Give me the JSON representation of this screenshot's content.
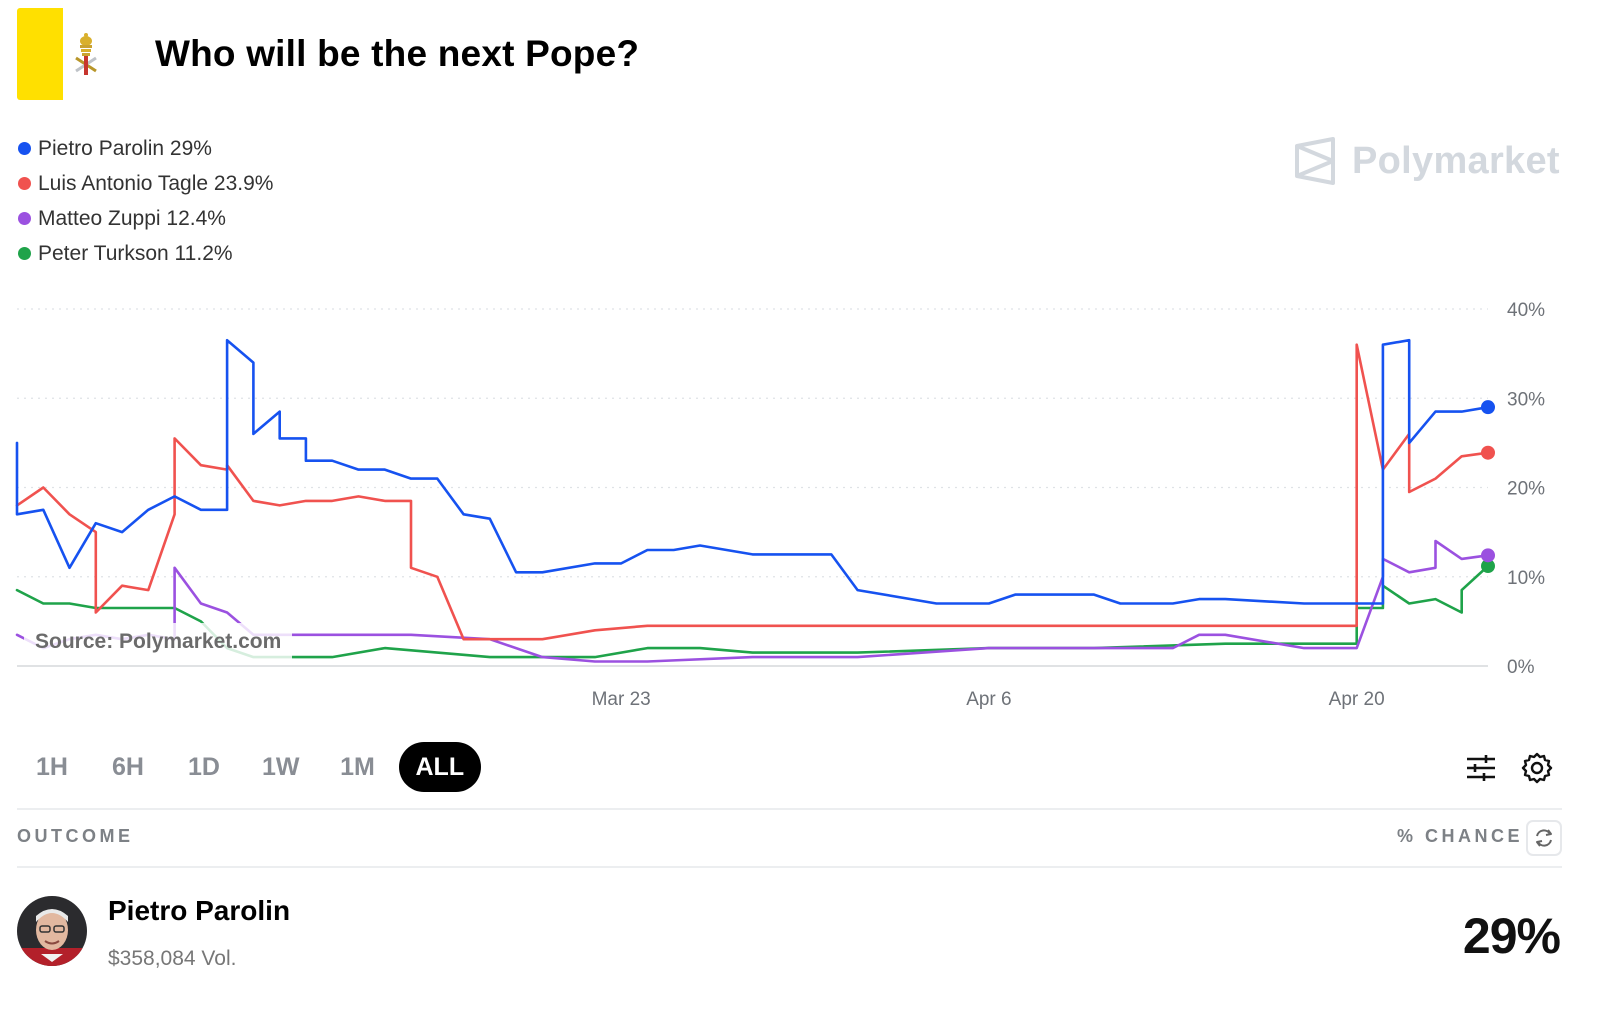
{
  "header": {
    "title": "Who will be the next Pope?",
    "flag_colors": {
      "yellow": "#FFE000",
      "white": "#FFFFFF"
    },
    "icon": "vatican-flag-icon"
  },
  "brand": {
    "name": "Polymarket",
    "icon": "polymarket-logo-icon"
  },
  "legend": [
    {
      "label": "Pietro Parolin 29%",
      "color": "#1652F0"
    },
    {
      "label": "Luis Antonio Tagle 23.9%",
      "color": "#F0524F"
    },
    {
      "label": "Matteo Zuppi 12.4%",
      "color": "#9B51E0"
    },
    {
      "label": "Peter Turkson 11.2%",
      "color": "#1FA34A"
    }
  ],
  "source": "Source: Polymarket.com",
  "chart_data": {
    "type": "line",
    "x_range": [
      "Feb 28",
      "Apr 25"
    ],
    "x_tick_labels": [
      "Mar 23",
      "Apr 6",
      "Apr 20"
    ],
    "y_tick_labels": [
      "40%",
      "30%",
      "20%",
      "10%",
      "0%"
    ],
    "ylim": [
      0,
      40
    ],
    "grid": true,
    "legend_position": "top-left",
    "series": [
      {
        "name": "Pietro Parolin",
        "color": "#1652F0",
        "x": [
          "Feb 28",
          "Feb 28",
          "Mar 1",
          "Mar 2",
          "Mar 3",
          "Mar 4",
          "Mar 5",
          "Mar 6",
          "Mar 7",
          "Mar 8",
          "Mar 8",
          "Mar 9",
          "Mar 9",
          "Mar 10",
          "Mar 10",
          "Mar 11",
          "Mar 11",
          "Mar 12",
          "Mar 13",
          "Mar 14",
          "Mar 15",
          "Mar 16",
          "Mar 17",
          "Mar 18",
          "Mar 19",
          "Mar 20",
          "Mar 22",
          "Mar 23",
          "Mar 24",
          "Mar 25",
          "Mar 26",
          "Mar 28",
          "Mar 31",
          "Apr 1",
          "Apr 4",
          "Apr 6",
          "Apr 7",
          "Apr 7",
          "Apr 10",
          "Apr 11",
          "Apr 13",
          "Apr 14",
          "Apr 15",
          "Apr 18",
          "Apr 20",
          "Apr 20",
          "Apr 21",
          "Apr 21",
          "Apr 22",
          "Apr 22",
          "Apr 23",
          "Apr 24",
          "Apr 25"
        ],
        "values": [
          25,
          17,
          17.5,
          11,
          16,
          15,
          17.5,
          19,
          17.5,
          17.5,
          36.5,
          34,
          26,
          28.5,
          25.5,
          25.5,
          23,
          23,
          22,
          22,
          21,
          21,
          17,
          16.5,
          10.5,
          10.5,
          11.5,
          11.5,
          13,
          13,
          13.5,
          12.5,
          12.5,
          8.5,
          7,
          7,
          8,
          8,
          8,
          7,
          7,
          7.5,
          7.5,
          7,
          7,
          7,
          7,
          36,
          36.5,
          25,
          28.5,
          28.5,
          29
        ]
      },
      {
        "name": "Luis Antonio Tagle",
        "color": "#F0524F",
        "x": [
          "Feb 28",
          "Mar 1",
          "Mar 1",
          "Mar 2",
          "Mar 3",
          "Mar 3",
          "Mar 4",
          "Mar 5",
          "Mar 6",
          "Mar 6",
          "Mar 7",
          "Mar 8",
          "Mar 8",
          "Mar 9",
          "Mar 10",
          "Mar 11",
          "Mar 12",
          "Mar 12",
          "Mar 13",
          "Mar 14",
          "Mar 15",
          "Mar 15",
          "Mar 16",
          "Mar 17",
          "Mar 18",
          "Mar 19",
          "Mar 20",
          "Mar 22",
          "Mar 24",
          "Mar 28",
          "Apr 1",
          "Apr 6",
          "Apr 10",
          "Apr 15",
          "Apr 20",
          "Apr 20",
          "Apr 21",
          "Apr 21",
          "Apr 22",
          "Apr 22",
          "Apr 23",
          "Apr 24",
          "Apr 25"
        ],
        "values": [
          18,
          20,
          20,
          17,
          15,
          6,
          9,
          8.5,
          17,
          25.5,
          22.5,
          22,
          22.5,
          18.5,
          18,
          18.5,
          18.5,
          18.5,
          19,
          18.5,
          18.5,
          11,
          10,
          3,
          3,
          3,
          3,
          4,
          4.5,
          4.5,
          4.5,
          4.5,
          4.5,
          4.5,
          4.5,
          36,
          22,
          22,
          26,
          19.5,
          21,
          23.5,
          23.9
        ]
      },
      {
        "name": "Matteo Zuppi",
        "color": "#9B51E0",
        "x": [
          "Feb 28",
          "Mar 1",
          "Mar 2",
          "Mar 3",
          "Mar 4",
          "Mar 5",
          "Mar 6",
          "Mar 6",
          "Mar 7",
          "Mar 8",
          "Mar 9",
          "Mar 10",
          "Mar 12",
          "Mar 15",
          "Mar 18",
          "Mar 20",
          "Mar 22",
          "Mar 24",
          "Mar 28",
          "Apr 1",
          "Apr 6",
          "Apr 10",
          "Apr 13",
          "Apr 14",
          "Apr 15",
          "Apr 18",
          "Apr 20",
          "Apr 20",
          "Apr 21",
          "Apr 21",
          "Apr 22",
          "Apr 23",
          "Apr 23",
          "Apr 24",
          "Apr 25"
        ],
        "values": [
          3.5,
          2,
          3,
          3.5,
          3,
          3.5,
          3,
          11,
          7,
          6,
          3.5,
          3.5,
          3.5,
          3.5,
          3,
          1,
          0.5,
          0.5,
          1,
          1,
          2,
          2,
          2,
          3.5,
          3.5,
          2,
          2,
          2,
          10,
          12,
          10.5,
          11,
          14,
          12,
          12.4
        ]
      },
      {
        "name": "Peter Turkson",
        "color": "#1FA34A",
        "x": [
          "Feb 28",
          "Mar 1",
          "Mar 2",
          "Mar 3",
          "Mar 4",
          "Mar 5",
          "Mar 6",
          "Mar 7",
          "Mar 8",
          "Mar 9",
          "Mar 10",
          "Mar 12",
          "Mar 14",
          "Mar 16",
          "Mar 18",
          "Mar 20",
          "Mar 22",
          "Mar 24",
          "Mar 26",
          "Mar 28",
          "Apr 1",
          "Apr 6",
          "Apr 10",
          "Apr 15",
          "Apr 20",
          "Apr 20",
          "Apr 21",
          "Apr 21",
          "Apr 22",
          "Apr 23",
          "Apr 24",
          "Apr 24",
          "Apr 25"
        ],
        "values": [
          8.5,
          7,
          7,
          6.5,
          6.5,
          6.5,
          6.5,
          5,
          2,
          1,
          1,
          1,
          2,
          1.5,
          1,
          1,
          1,
          2,
          2,
          1.5,
          1.5,
          2,
          2,
          2.5,
          2.5,
          6.5,
          6.5,
          9,
          7,
          7.5,
          6,
          8.5,
          11.2
        ]
      }
    ]
  },
  "time_ranges": [
    {
      "label": "1H",
      "active": false
    },
    {
      "label": "6H",
      "active": false
    },
    {
      "label": "1D",
      "active": false
    },
    {
      "label": "1W",
      "active": false
    },
    {
      "label": "1M",
      "active": false
    },
    {
      "label": "ALL",
      "active": true
    }
  ],
  "toolbar_icons": [
    "sliders-icon",
    "gear-icon"
  ],
  "table": {
    "col_outcome": "OUTCOME",
    "col_chance": "% CHANCE",
    "refresh_icon": "refresh-icon",
    "rows": [
      {
        "name": "Pietro Parolin",
        "volume": "$358,084 Vol.",
        "chance": "29%"
      }
    ]
  }
}
